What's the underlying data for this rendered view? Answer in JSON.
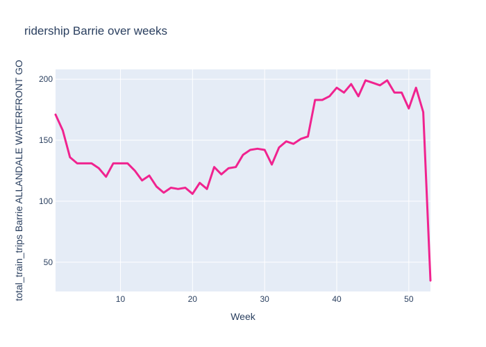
{
  "chart_data": {
    "type": "line",
    "title": "ridership Barrie over weeks",
    "xlabel": "Week",
    "ylabel": "total_train_trips Barrie ALLANDALE WATERFRONT GO",
    "xlim": [
      1,
      53
    ],
    "ylim": [
      26,
      208
    ],
    "x_ticks": [
      10,
      20,
      30,
      40,
      50
    ],
    "y_ticks": [
      50,
      100,
      150,
      200
    ],
    "grid": true,
    "line_color": "#f0238f",
    "plot_bg": "#e5ecf6",
    "series": [
      {
        "x": [
          1,
          2,
          3,
          4,
          5,
          6,
          7,
          8,
          9,
          10,
          11,
          12,
          13,
          14,
          15,
          16,
          17,
          18,
          19,
          20,
          21,
          22,
          23,
          24,
          25,
          26,
          27,
          28,
          29,
          30,
          31,
          32,
          33,
          34,
          35,
          36,
          37,
          38,
          39,
          40,
          41,
          42,
          43,
          44,
          45,
          46,
          47,
          48,
          49,
          50,
          51,
          52,
          53
        ],
        "values": [
          171,
          158,
          136,
          131,
          131,
          131,
          127,
          120,
          131,
          131,
          131,
          125,
          117,
          121,
          112,
          107,
          111,
          110,
          111,
          106,
          115,
          110,
          128,
          122,
          127,
          128,
          138,
          142,
          143,
          142,
          130,
          144,
          149,
          147,
          151,
          153,
          183,
          183,
          186,
          193,
          189,
          196,
          186,
          199,
          197,
          195,
          199,
          189,
          189,
          176,
          193,
          173,
          35
        ]
      }
    ]
  }
}
